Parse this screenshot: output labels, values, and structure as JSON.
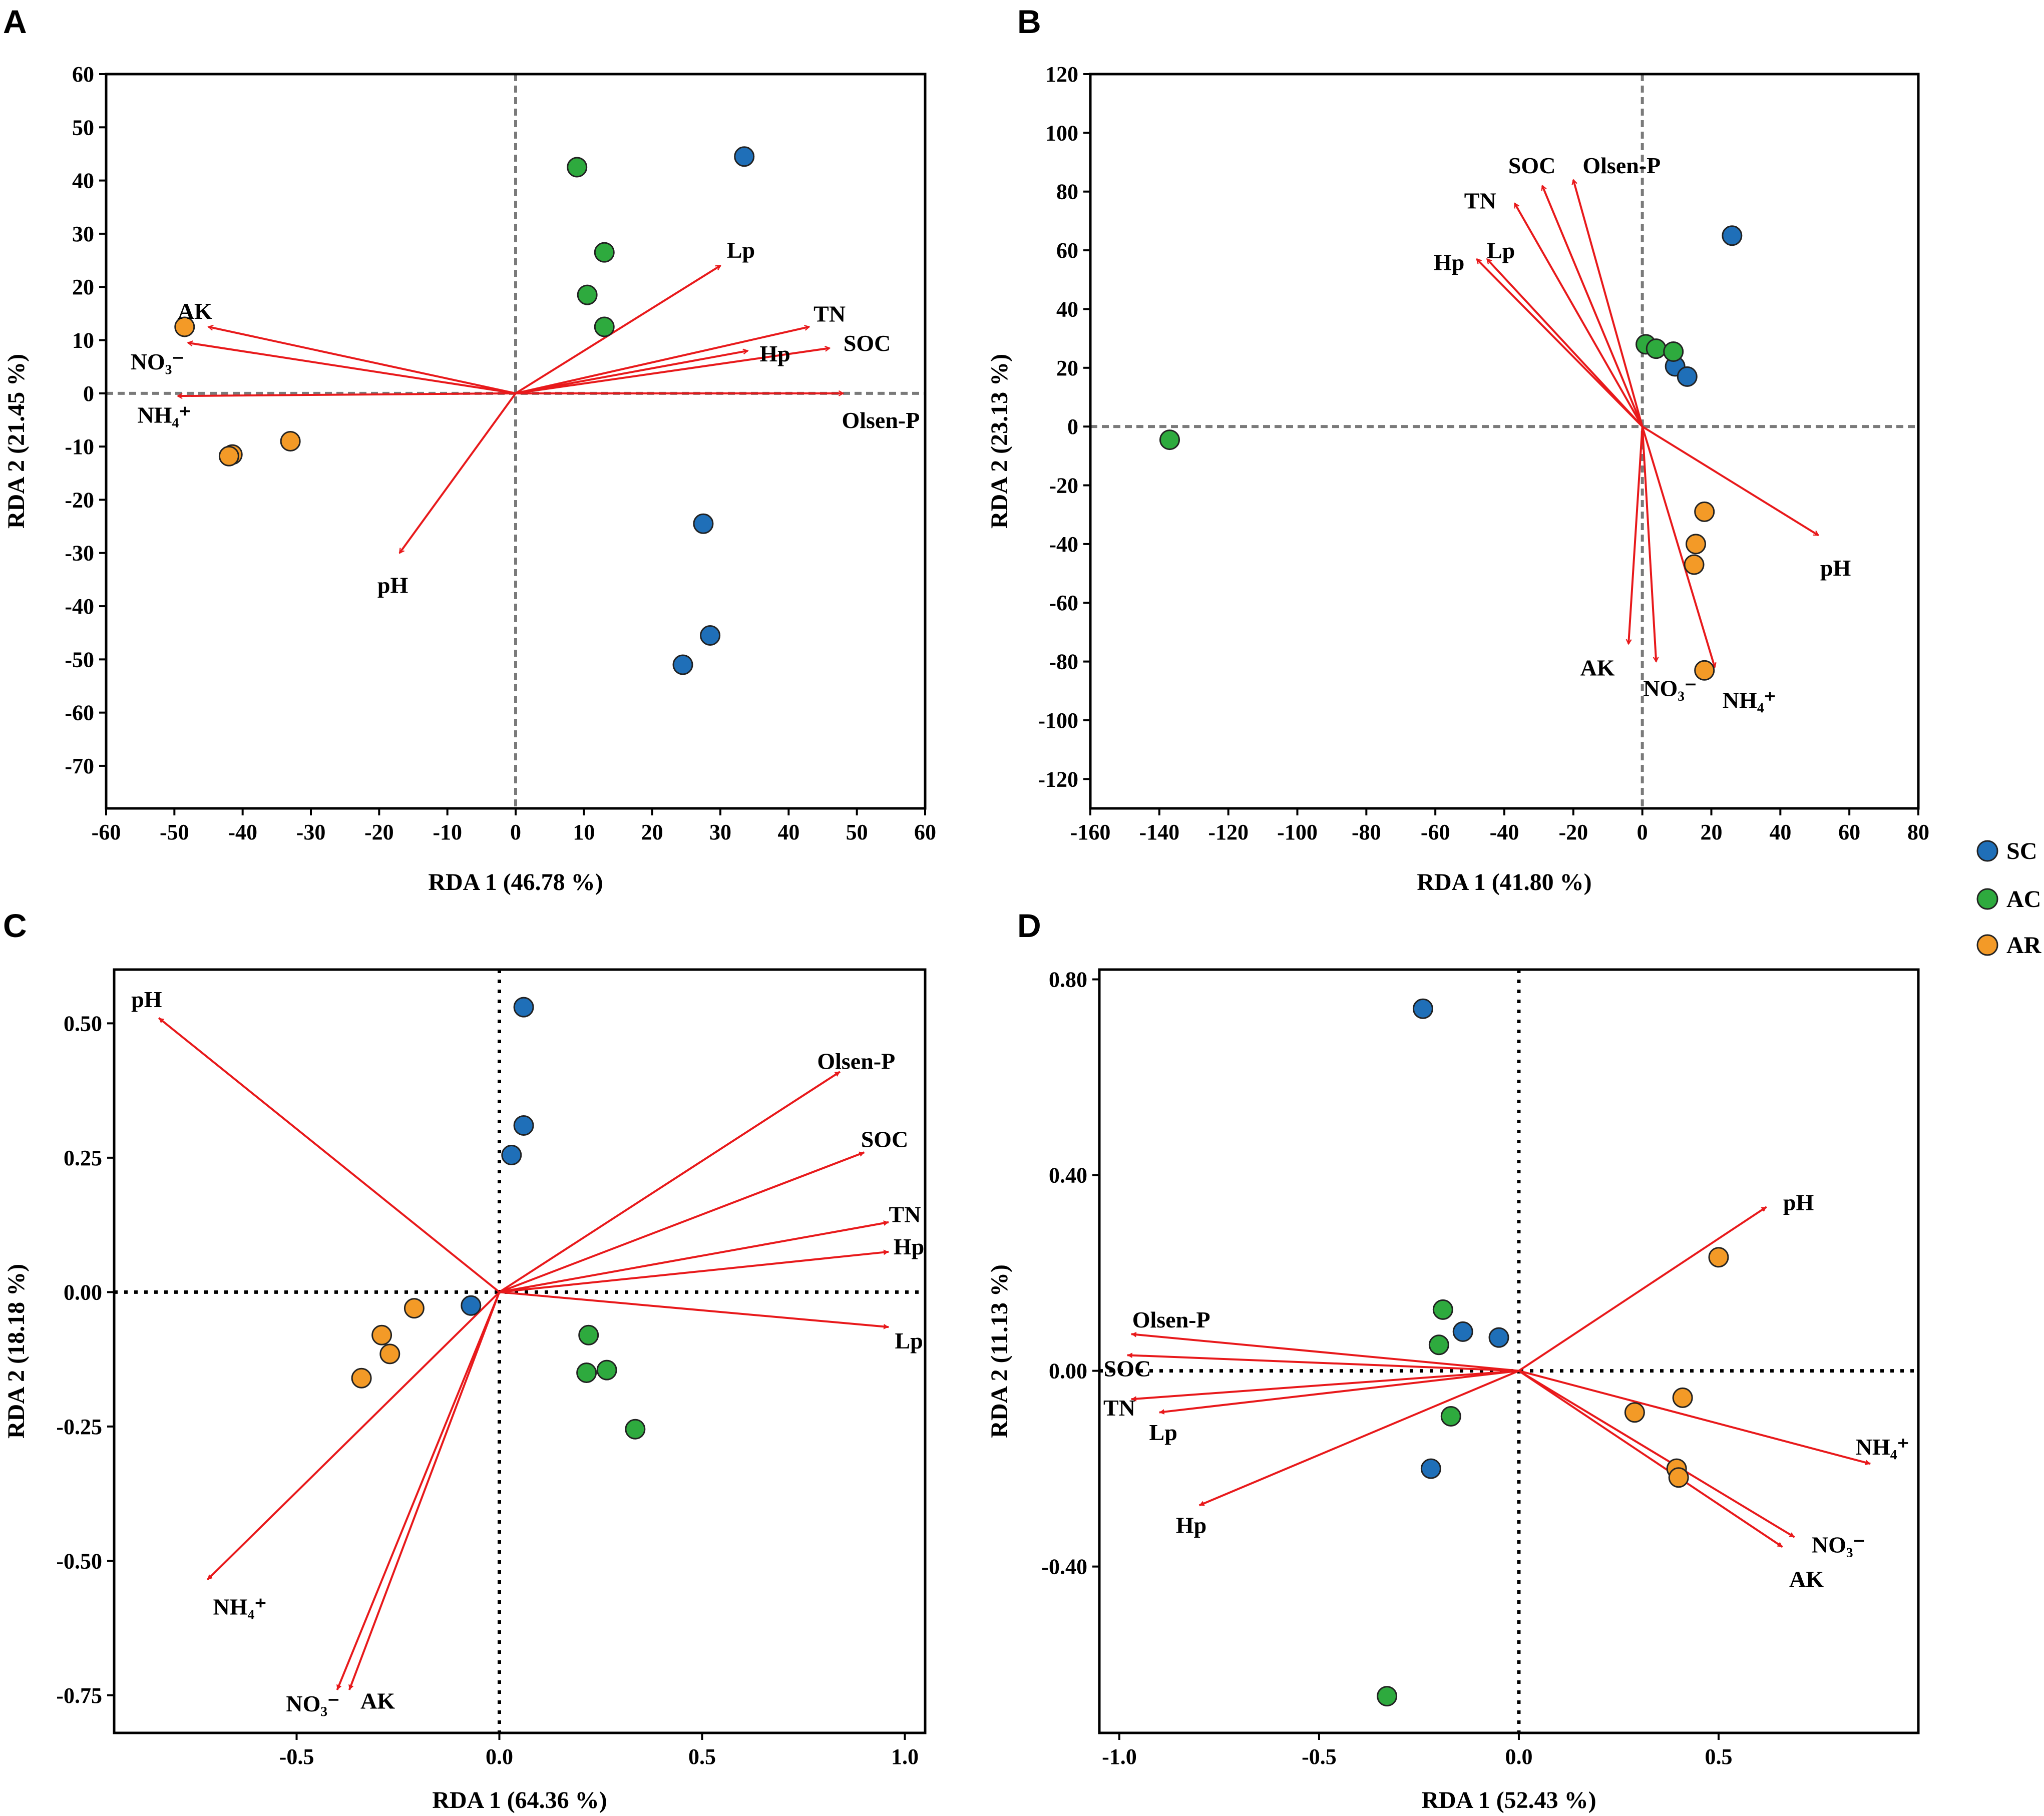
{
  "colors": {
    "SC": "#1f6fb8",
    "AC": "#2eaa3e",
    "AR": "#f39a27",
    "arrow": "#e8191b",
    "frame": "#000000",
    "zero_line_dashed": "#7a7a7a",
    "zero_line_dotted": "#000000"
  },
  "legend": {
    "entries": [
      {
        "group": "SC",
        "label": "SC"
      },
      {
        "group": "AC",
        "label": "AC"
      },
      {
        "group": "AR",
        "label": "AR"
      }
    ]
  },
  "chart_data": [
    {
      "panel": "A",
      "type": "scatter",
      "xlabel": "RDA 1 (46.78 %)",
      "ylabel": "RDA 2 (21.45 %)",
      "xlim": [
        -60,
        60
      ],
      "ylim": [
        -78,
        60
      ],
      "xticks": [
        -60,
        -50,
        -40,
        -30,
        -20,
        -10,
        0,
        10,
        20,
        30,
        40,
        50,
        60
      ],
      "xtick_labels": [
        "-60",
        "-50",
        "-40",
        "-30",
        "-20",
        "-10",
        "0",
        "10",
        "20",
        "30",
        "40",
        "50",
        "60"
      ],
      "yticks": [
        60,
        50,
        40,
        30,
        20,
        10,
        0,
        -10,
        -20,
        -30,
        -40,
        -50,
        -60,
        -70
      ],
      "ytick_labels": [
        "60",
        "50",
        "40",
        "30",
        "20",
        "10",
        "0",
        "-10",
        "-20",
        "-30",
        "-40",
        "-50",
        "-60",
        "-70"
      ],
      "zero_style": "dashed",
      "points": [
        {
          "group": "SC",
          "x": 33.5,
          "y": 44.5
        },
        {
          "group": "SC",
          "x": 27.5,
          "y": -24.5
        },
        {
          "group": "SC",
          "x": 28.5,
          "y": -45.5
        },
        {
          "group": "SC",
          "x": 24.5,
          "y": -51.0
        },
        {
          "group": "AC",
          "x": 9.0,
          "y": 42.5
        },
        {
          "group": "AC",
          "x": 13.0,
          "y": 26.5
        },
        {
          "group": "AC",
          "x": 10.5,
          "y": 18.5
        },
        {
          "group": "AC",
          "x": 13.0,
          "y": 12.5
        },
        {
          "group": "AR",
          "x": -48.5,
          "y": 12.5
        },
        {
          "group": "AR",
          "x": -41.5,
          "y": -11.5
        },
        {
          "group": "AR",
          "x": -42.0,
          "y": -11.8
        },
        {
          "group": "AR",
          "x": -33.0,
          "y": -9.0
        }
      ],
      "vectors": [
        {
          "label": "Lp",
          "x": 30,
          "y": 24,
          "lx": 33,
          "ly": 27,
          "anchor": "middle"
        },
        {
          "label": "TN",
          "x": 43,
          "y": 12.5,
          "lx": 46,
          "ly": 15,
          "anchor": "middle"
        },
        {
          "label": "Hp",
          "x": 34,
          "y": 8,
          "lx": 38,
          "ly": 7.5,
          "anchor": "middle"
        },
        {
          "label": "SOC",
          "x": 46,
          "y": 8.5,
          "lx": 51.5,
          "ly": 9.5,
          "anchor": "middle"
        },
        {
          "label": "Olsen-P",
          "x": 48,
          "y": 0,
          "lx": 53.5,
          "ly": -5,
          "anchor": "middle"
        },
        {
          "label": "AK",
          "x": -45,
          "y": 12.5,
          "lx": -47,
          "ly": 15.5,
          "anchor": "middle"
        },
        {
          "label": "NO₃⁻",
          "x": -48,
          "y": 9.5,
          "lx": -52.5,
          "ly": 6,
          "anchor": "middle"
        },
        {
          "label": "NH₄⁺",
          "x": -49.5,
          "y": -0.5,
          "lx": -51.5,
          "ly": -4,
          "anchor": "middle"
        },
        {
          "label": "pH",
          "x": -17,
          "y": -30,
          "lx": -18,
          "ly": -36,
          "anchor": "middle"
        }
      ]
    },
    {
      "panel": "B",
      "type": "scatter",
      "xlabel": "RDA 1 (41.80 %)",
      "ylabel": "RDA 2 (23.13 %)",
      "xlim": [
        -160,
        80
      ],
      "ylim": [
        -130,
        120
      ],
      "xticks": [
        -160,
        -140,
        -120,
        -100,
        -80,
        -60,
        -40,
        -20,
        0,
        20,
        40,
        60,
        80
      ],
      "xtick_labels": [
        "-160",
        "-140",
        "-120",
        "-100",
        "-80",
        "-60",
        "-40",
        "-20",
        "0",
        "20",
        "40",
        "60",
        "80"
      ],
      "yticks": [
        120,
        100,
        80,
        60,
        40,
        20,
        0,
        -20,
        -40,
        -60,
        -80,
        -100,
        -120
      ],
      "ytick_labels": [
        "120",
        "100",
        "80",
        "60",
        "40",
        "20",
        "0",
        "-20",
        "-40",
        "-60",
        "-80",
        "-100",
        "-120"
      ],
      "zero_style": "dashed",
      "points": [
        {
          "group": "SC",
          "x": 26,
          "y": 65
        },
        {
          "group": "SC",
          "x": 9.5,
          "y": 20.5
        },
        {
          "group": "SC",
          "x": 13,
          "y": 17
        },
        {
          "group": "AC",
          "x": 1,
          "y": 28
        },
        {
          "group": "AC",
          "x": 4,
          "y": 26.5
        },
        {
          "group": "AC",
          "x": 9,
          "y": 25.5
        },
        {
          "group": "AC",
          "x": -137,
          "y": -4.5
        },
        {
          "group": "AR",
          "x": 18,
          "y": -29
        },
        {
          "group": "AR",
          "x": 15.5,
          "y": -40
        },
        {
          "group": "AR",
          "x": 15,
          "y": -47
        },
        {
          "group": "AR",
          "x": 18,
          "y": -83
        }
      ],
      "vectors": [
        {
          "label": "SOC",
          "x": -29,
          "y": 82,
          "lx": -32,
          "ly": 89,
          "anchor": "middle"
        },
        {
          "label": "Olsen-P",
          "x": -20,
          "y": 84,
          "lx": -6,
          "ly": 89,
          "anchor": "middle"
        },
        {
          "label": "TN",
          "x": -37,
          "y": 76,
          "lx": -47,
          "ly": 77,
          "anchor": "middle"
        },
        {
          "label": "Lp",
          "x": -45,
          "y": 57,
          "lx": -41,
          "ly": 60,
          "anchor": "middle"
        },
        {
          "label": "Hp",
          "x": -48,
          "y": 57,
          "lx": -56,
          "ly": 56,
          "anchor": "middle"
        },
        {
          "label": "pH",
          "x": 51,
          "y": -37,
          "lx": 56,
          "ly": -48,
          "anchor": "middle"
        },
        {
          "label": "AK",
          "x": -4,
          "y": -74,
          "lx": -13,
          "ly": -82,
          "anchor": "middle"
        },
        {
          "label": "NO₃⁻",
          "x": 4,
          "y": -80,
          "lx": 8,
          "ly": -89,
          "anchor": "middle"
        },
        {
          "label": "NH₄⁺",
          "x": 21,
          "y": -82,
          "lx": 31,
          "ly": -93,
          "anchor": "middle"
        }
      ]
    },
    {
      "panel": "C",
      "type": "scatter",
      "xlabel": "RDA 1 (64.36 %)",
      "ylabel": "RDA 2 (18.18 %)",
      "xlim": [
        -0.95,
        1.05
      ],
      "ylim": [
        -0.82,
        0.6
      ],
      "xticks": [
        -0.5,
        0.0,
        0.5,
        1.0
      ],
      "xtick_labels": [
        "-0.5",
        "0.0",
        "0.5",
        "1.0"
      ],
      "yticks": [
        0.5,
        0.25,
        0.0,
        -0.25,
        -0.5,
        -0.75
      ],
      "ytick_labels": [
        "0.50",
        "0.25",
        "0.00",
        "-0.25",
        "-0.50",
        "-0.75"
      ],
      "zero_style": "dotted",
      "points": [
        {
          "group": "SC",
          "x": 0.06,
          "y": 0.53
        },
        {
          "group": "SC",
          "x": 0.06,
          "y": 0.31
        },
        {
          "group": "SC",
          "x": 0.03,
          "y": 0.255
        },
        {
          "group": "SC",
          "x": -0.07,
          "y": -0.025
        },
        {
          "group": "AC",
          "x": 0.22,
          "y": -0.08
        },
        {
          "group": "AC",
          "x": 0.215,
          "y": -0.15
        },
        {
          "group": "AC",
          "x": 0.265,
          "y": -0.145
        },
        {
          "group": "AC",
          "x": 0.335,
          "y": -0.255
        },
        {
          "group": "AR",
          "x": -0.21,
          "y": -0.03
        },
        {
          "group": "AR",
          "x": -0.29,
          "y": -0.08
        },
        {
          "group": "AR",
          "x": -0.27,
          "y": -0.115
        },
        {
          "group": "AR",
          "x": -0.34,
          "y": -0.16
        }
      ],
      "vectors": [
        {
          "label": "pH",
          "x": -0.84,
          "y": 0.51,
          "lx": -0.87,
          "ly": 0.545,
          "anchor": "middle"
        },
        {
          "label": "Olsen-P",
          "x": 0.84,
          "y": 0.41,
          "lx": 0.88,
          "ly": 0.43,
          "anchor": "middle"
        },
        {
          "label": "SOC",
          "x": 0.9,
          "y": 0.26,
          "lx": 0.95,
          "ly": 0.285,
          "anchor": "middle"
        },
        {
          "label": "TN",
          "x": 0.96,
          "y": 0.13,
          "lx": 1.0,
          "ly": 0.145,
          "anchor": "middle"
        },
        {
          "label": "Hp",
          "x": 0.96,
          "y": 0.075,
          "lx": 1.01,
          "ly": 0.085,
          "anchor": "middle"
        },
        {
          "label": "Lp",
          "x": 0.96,
          "y": -0.065,
          "lx": 1.01,
          "ly": -0.09,
          "anchor": "middle"
        },
        {
          "label": "NH₄⁺",
          "x": -0.72,
          "y": -0.535,
          "lx": -0.64,
          "ly": -0.585,
          "anchor": "middle"
        },
        {
          "label": "NO₃⁻",
          "x": -0.4,
          "y": -0.74,
          "lx": -0.46,
          "ly": -0.765,
          "anchor": "middle"
        },
        {
          "label": "AK",
          "x": -0.37,
          "y": -0.74,
          "lx": -0.3,
          "ly": -0.76,
          "anchor": "middle"
        }
      ]
    },
    {
      "panel": "D",
      "type": "scatter",
      "xlabel": "RDA 1 (52.43 %)",
      "ylabel": "RDA 2 (11.13 %)",
      "xlim": [
        -1.05,
        1.0
      ],
      "ylim": [
        -0.74,
        0.82
      ],
      "xticks": [
        -1.0,
        -0.5,
        0.0,
        0.5
      ],
      "xtick_labels": [
        "-1.0",
        "-0.5",
        "0.0",
        "0.5"
      ],
      "yticks": [
        0.8,
        0.4,
        0.0,
        -0.4
      ],
      "ytick_labels": [
        "0.80",
        "0.40",
        "0.00",
        "-0.40"
      ],
      "zero_style": "dotted",
      "points": [
        {
          "group": "SC",
          "x": -0.24,
          "y": 0.74
        },
        {
          "group": "SC",
          "x": -0.14,
          "y": 0.08
        },
        {
          "group": "SC",
          "x": -0.05,
          "y": 0.068
        },
        {
          "group": "SC",
          "x": -0.22,
          "y": -0.2
        },
        {
          "group": "AC",
          "x": -0.19,
          "y": 0.125
        },
        {
          "group": "AC",
          "x": -0.2,
          "y": 0.053
        },
        {
          "group": "AC",
          "x": -0.17,
          "y": -0.093
        },
        {
          "group": "AC",
          "x": -0.33,
          "y": -0.665
        },
        {
          "group": "AR",
          "x": 0.5,
          "y": 0.232
        },
        {
          "group": "AR",
          "x": 0.41,
          "y": -0.055
        },
        {
          "group": "AR",
          "x": 0.29,
          "y": -0.085
        },
        {
          "group": "AR",
          "x": 0.395,
          "y": -0.2
        },
        {
          "group": "AR",
          "x": 0.4,
          "y": -0.218
        }
      ],
      "vectors": [
        {
          "label": "pH",
          "x": 0.62,
          "y": 0.335,
          "lx": 0.7,
          "ly": 0.345,
          "anchor": "middle"
        },
        {
          "label": "Olsen-P",
          "x": -0.97,
          "y": 0.075,
          "lx": -0.87,
          "ly": 0.105,
          "anchor": "middle"
        },
        {
          "label": "SOC",
          "x": -0.98,
          "y": 0.032,
          "lx": -0.98,
          "ly": 0.005,
          "anchor": "middle"
        },
        {
          "label": "TN",
          "x": -0.97,
          "y": -0.058,
          "lx": -1.0,
          "ly": -0.075,
          "anchor": "middle"
        },
        {
          "label": "Lp",
          "x": -0.9,
          "y": -0.085,
          "lx": -0.89,
          "ly": -0.125,
          "anchor": "middle"
        },
        {
          "label": "Hp",
          "x": -0.8,
          "y": -0.275,
          "lx": -0.82,
          "ly": -0.315,
          "anchor": "middle"
        },
        {
          "label": "NH₄⁺",
          "x": 0.88,
          "y": -0.19,
          "lx": 0.91,
          "ly": -0.155,
          "anchor": "middle"
        },
        {
          "label": "NO₃⁻",
          "x": 0.69,
          "y": -0.34,
          "lx": 0.8,
          "ly": -0.355,
          "anchor": "middle"
        },
        {
          "label": "AK",
          "x": 0.66,
          "y": -0.36,
          "lx": 0.72,
          "ly": -0.425,
          "anchor": "middle"
        }
      ]
    }
  ]
}
